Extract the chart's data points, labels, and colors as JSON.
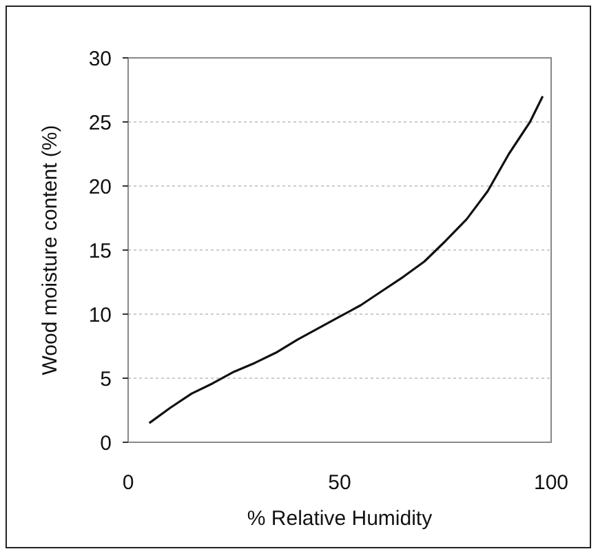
{
  "chart_data": {
    "type": "line",
    "xlabel": "% Relative Humidity",
    "ylabel": "Wood moisture content (%)",
    "x": [
      5,
      10,
      15,
      20,
      25,
      30,
      35,
      40,
      45,
      50,
      55,
      60,
      65,
      70,
      75,
      80,
      85,
      90,
      95,
      98
    ],
    "series": [
      {
        "color": "#111111",
        "values": [
          1.5,
          2.7,
          3.8,
          4.6,
          5.5,
          6.2,
          7,
          8,
          8.9,
          9.8,
          10.7,
          11.8,
          12.9,
          14.1,
          15.7,
          17.4,
          19.6,
          22.5,
          25,
          27
        ]
      }
    ],
    "xlim": [
      0,
      100
    ],
    "xticks": [
      0,
      50,
      100
    ],
    "ylim": [
      0,
      30
    ],
    "yticks": [
      0,
      5,
      10,
      15,
      20,
      25,
      30
    ],
    "grid": "y",
    "marker": "none",
    "line_style": "solid"
  }
}
